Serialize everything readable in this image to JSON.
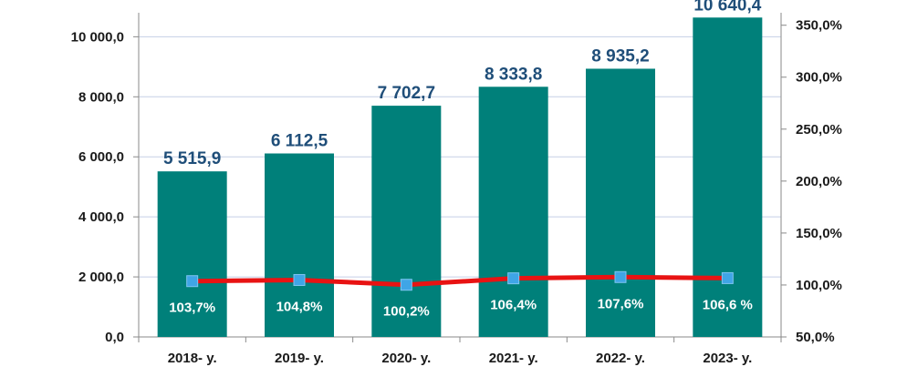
{
  "chart_data": {
    "type": "bar",
    "categories": [
      "2018- y.",
      "2019- y.",
      "2020- y.",
      "2021- y.",
      "2022- y.",
      "2023- y."
    ],
    "series": [
      {
        "type": "bar",
        "values": [
          5515.9,
          6112.5,
          7702.7,
          8333.8,
          8935.2,
          10640.4
        ],
        "labels": [
          "5 515,9",
          "6 112,5",
          "7 702,7",
          "8 333,8",
          "8 935,2",
          "10 640,4"
        ],
        "color": "#00807a",
        "axis": "left"
      },
      {
        "type": "line",
        "values": [
          103.7,
          104.8,
          100.2,
          106.4,
          107.6,
          106.6
        ],
        "labels": [
          "103,7%",
          "104,8%",
          "100,2%",
          "106,4%",
          "107,6%",
          "106,6 %"
        ],
        "line_color": "#e81313",
        "marker_color": "#3fa5e6",
        "axis": "right"
      }
    ],
    "left_axis": {
      "ylim": [
        0,
        10800
      ],
      "ticks": [
        0,
        2000,
        4000,
        6000,
        8000,
        10000
      ],
      "tick_labels": [
        "0,0",
        "2 000,0",
        "4 000,0",
        "6 000,0",
        "8 000,0",
        "10 000,0"
      ]
    },
    "right_axis": {
      "ylim": [
        50,
        362
      ],
      "ticks": [
        50,
        100,
        150,
        200,
        250,
        300,
        350
      ],
      "tick_labels": [
        "50,0%",
        "100,0%",
        "150,0%",
        "200,0%",
        "250,0%",
        "300,0%",
        "350,0%"
      ]
    },
    "grid": true,
    "grid_color": "#c5cfe6"
  }
}
